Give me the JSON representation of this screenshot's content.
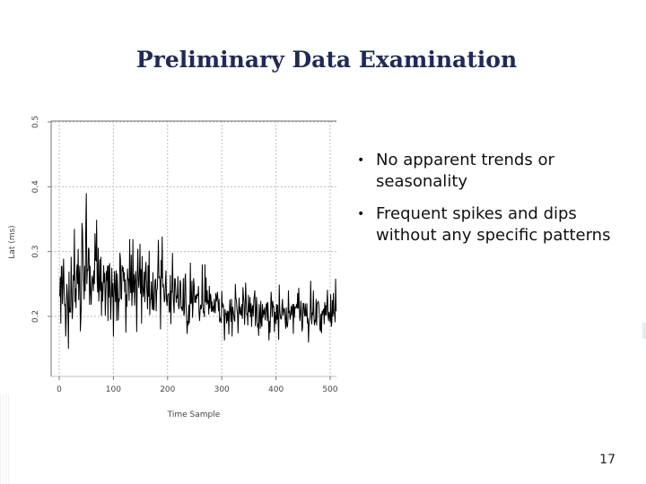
{
  "slide": {
    "title": "Preliminary Data Examination",
    "bullets": [
      "No apparent trends or seasonality",
      "Frequent spikes and dips without any specific patterns"
    ],
    "page_number": "17"
  },
  "chart_data": {
    "type": "line",
    "xlabel": "Time Sample",
    "ylabel": "Lat (ms)",
    "xlim": [
      0,
      500
    ],
    "ylim": [
      0.1,
      0.5
    ],
    "x_ticks": [
      "0",
      "100",
      "200",
      "300",
      "400",
      "500"
    ],
    "y_ticks": [
      "0.2",
      "0.3",
      "0.4",
      "0.5"
    ],
    "grid": true,
    "color": "#000000",
    "series": [
      {
        "x_start": 1,
        "x_step": 1,
        "values": [
          0.231,
          0.261,
          0.189,
          0.277,
          0.277,
          0.219,
          0.248,
          0.289,
          0.245,
          0.217,
          0.218,
          0.169,
          0.2,
          0.25,
          0.236,
          0.211,
          0.15,
          0.269,
          0.206,
          0.213,
          0.206,
          0.292,
          0.24,
          0.196,
          0.215,
          0.264,
          0.255,
          0.335,
          0.222,
          0.243,
          0.213,
          0.267,
          0.28,
          0.25,
          0.304,
          0.225,
          0.262,
          0.278,
          0.177,
          0.198,
          0.225,
          0.344,
          0.331,
          0.288,
          0.252,
          0.226,
          0.278,
          0.239,
          0.338,
          0.39,
          0.25,
          0.273,
          0.27,
          0.306,
          0.303,
          0.218,
          0.278,
          0.238,
          0.218,
          0.249,
          0.263,
          0.256,
          0.239,
          0.271,
          0.25,
          0.328,
          0.287,
          0.286,
          0.349,
          0.255,
          0.237,
          0.306,
          0.223,
          0.244,
          0.288,
          0.239,
          0.292,
          0.201,
          0.253,
          0.223,
          0.242,
          0.279,
          0.252,
          0.267,
          0.201,
          0.233,
          0.27,
          0.255,
          0.278,
          0.193,
          0.279,
          0.229,
          0.282,
          0.24,
          0.195,
          0.227,
          0.275,
          0.23,
          0.251,
          0.169,
          0.228,
          0.27,
          0.244,
          0.222,
          0.271,
          0.193,
          0.266,
          0.24,
          0.194,
          0.228,
          0.223,
          0.298,
          0.288,
          0.229,
          0.226,
          0.279,
          0.269,
          0.276,
          0.254,
          0.268,
          0.237,
          0.257,
          0.175,
          0.234,
          0.215,
          0.274,
          0.256,
          0.258,
          0.224,
          0.319,
          0.255,
          0.236,
          0.295,
          0.216,
          0.237,
          0.319,
          0.237,
          0.265,
          0.217,
          0.253,
          0.27,
          0.249,
          0.176,
          0.258,
          0.304,
          0.258,
          0.244,
          0.264,
          0.312,
          0.235,
          0.273,
          0.189,
          0.293,
          0.248,
          0.23,
          0.24,
          0.269,
          0.222,
          0.27,
          0.284,
          0.255,
          0.235,
          0.211,
          0.279,
          0.23,
          0.301,
          0.202,
          0.225,
          0.227,
          0.254,
          0.222,
          0.21,
          0.268,
          0.211,
          0.21,
          0.24,
          0.256,
          0.257,
          0.208,
          0.241,
          0.242,
          0.274,
          0.318,
          0.26,
          0.261,
          0.255,
          0.18,
          0.287,
          0.259,
          0.323,
          0.245,
          0.25,
          0.24,
          0.222,
          0.227,
          0.252,
          0.271,
          0.225,
          0.216,
          0.232,
          0.234,
          0.235,
          0.206,
          0.209,
          0.264,
          0.188,
          0.239,
          0.237,
          0.298,
          0.243,
          0.219,
          0.205,
          0.258,
          0.258,
          0.24,
          0.221,
          0.232,
          0.228,
          0.262,
          0.217,
          0.211,
          0.223,
          0.256,
          0.251,
          0.213,
          0.214,
          0.208,
          0.213,
          0.259,
          0.201,
          0.205,
          0.257,
          0.266,
          0.218,
          0.199,
          0.173,
          0.193,
          0.186,
          0.218,
          0.189,
          0.209,
          0.283,
          0.22,
          0.221,
          0.255,
          0.198,
          0.219,
          0.259,
          0.248,
          0.221,
          0.232,
          0.221,
          0.234,
          0.227,
          0.235,
          0.232,
          0.247,
          0.206,
          0.193,
          0.21,
          0.218,
          0.211,
          0.218,
          0.28,
          0.221,
          0.205,
          0.208,
          0.199,
          0.28,
          0.222,
          0.26,
          0.218,
          0.24,
          0.22,
          0.225,
          0.203,
          0.247,
          0.212,
          0.235,
          0.23,
          0.207,
          0.223,
          0.208,
          0.216,
          0.206,
          0.227,
          0.212,
          0.205,
          0.236,
          0.223,
          0.228,
          0.238,
          0.223,
          0.208,
          0.227,
          0.191,
          0.197,
          0.195,
          0.19,
          0.239,
          0.214,
          0.219,
          0.217,
          0.198,
          0.163,
          0.211,
          0.203,
          0.204,
          0.189,
          0.209,
          0.193,
          0.208,
          0.172,
          0.207,
          0.226,
          0.206,
          0.192,
          0.227,
          0.169,
          0.215,
          0.209,
          0.202,
          0.195,
          0.192,
          0.25,
          0.228,
          0.225,
          0.211,
          0.204,
          0.174,
          0.208,
          0.229,
          0.203,
          0.215,
          0.205,
          0.201,
          0.219,
          0.196,
          0.245,
          0.231,
          0.221,
          0.187,
          0.21,
          0.252,
          0.226,
          0.202,
          0.205,
          0.186,
          0.233,
          0.208,
          0.207,
          0.23,
          0.199,
          0.22,
          0.184,
          0.212,
          0.217,
          0.2,
          0.224,
          0.232,
          0.24,
          0.185,
          0.198,
          0.23,
          0.214,
          0.183,
          0.189,
          0.17,
          0.219,
          0.206,
          0.181,
          0.224,
          0.19,
          0.184,
          0.219,
          0.198,
          0.21,
          0.203,
          0.214,
          0.194,
          0.205,
          0.219,
          0.22,
          0.193,
          0.222,
          0.198,
          0.163,
          0.193,
          0.175,
          0.208,
          0.238,
          0.221,
          0.199,
          0.224,
          0.214,
          0.216,
          0.176,
          0.207,
          0.195,
          0.188,
          0.219,
          0.195,
          0.218,
          0.192,
          0.164,
          0.249,
          0.209,
          0.2,
          0.196,
          0.196,
          0.214,
          0.227,
          0.201,
          0.207,
          0.213,
          0.209,
          0.194,
          0.181,
          0.214,
          0.187,
          0.183,
          0.193,
          0.24,
          0.205,
          0.209,
          0.195,
          0.2,
          0.216,
          0.202,
          0.215,
          0.219,
          0.173,
          0.219,
          0.198,
          0.214,
          0.213,
          0.214,
          0.219,
          0.212,
          0.236,
          0.212,
          0.244,
          0.216,
          0.193,
          0.201,
          0.224,
          0.207,
          0.177,
          0.183,
          0.22,
          0.22,
          0.206,
          0.2,
          0.22,
          0.202,
          0.2,
          0.22,
          0.189,
          0.198,
          0.16,
          0.188,
          0.194,
          0.198,
          0.255,
          0.214,
          0.188,
          0.206,
          0.202,
          0.24,
          0.202,
          0.186,
          0.195,
          0.191,
          0.227,
          0.186,
          0.219,
          0.222,
          0.223,
          0.219,
          0.203,
          0.181,
          0.177,
          0.204,
          0.174,
          0.208,
          0.202,
          0.21,
          0.211,
          0.188,
          0.222,
          0.202,
          0.217,
          0.201,
          0.221,
          0.241,
          0.201,
          0.193,
          0.207,
          0.201,
          0.191,
          0.234,
          0.184,
          0.189,
          0.225,
          0.2,
          0.236,
          0.205,
          0.205,
          0.191,
          0.258,
          0.208
        ]
      }
    ]
  }
}
